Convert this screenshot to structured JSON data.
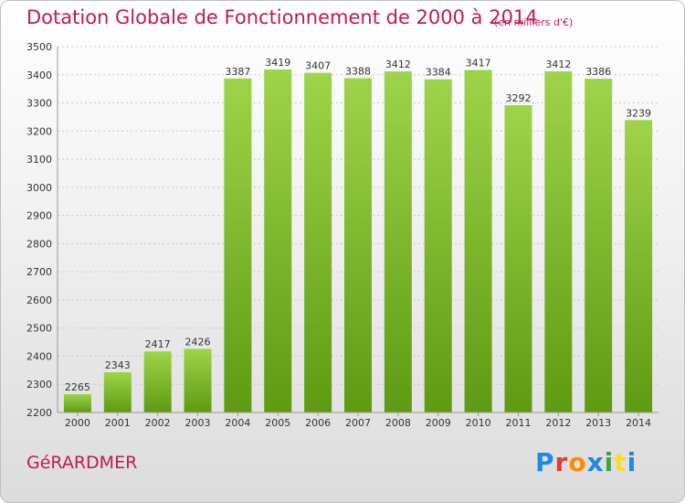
{
  "header": {
    "title": "Dotation Globale de Fonctionnement de 2000 à 2014",
    "subtitle": "(en milliers d'€)"
  },
  "footer": {
    "commune": "GéRARDMER",
    "logo_text": "Proxiti",
    "logo_colors": [
      "#1e88e5",
      "#e53935",
      "#fb8c00",
      "#1e88e5",
      "#43a047",
      "#fdd835",
      "#1e88e5"
    ]
  },
  "colors": {
    "bar_top": "#9ed44a",
    "bar_bottom": "#5e9a12",
    "grid": "#c8c8c8",
    "text": "#333333"
  },
  "chart_data": {
    "type": "bar",
    "title": "Dotation Globale de Fonctionnement de 2000 à 2014",
    "subtitle": "(en milliers d'€)",
    "categories": [
      "2000",
      "2001",
      "2002",
      "2003",
      "2004",
      "2005",
      "2006",
      "2007",
      "2008",
      "2009",
      "2010",
      "2011",
      "2012",
      "2013",
      "2014"
    ],
    "values": [
      2265,
      2343,
      2417,
      2426,
      3387,
      3419,
      3407,
      3388,
      3412,
      3384,
      3417,
      3292,
      3412,
      3386,
      3239
    ],
    "yticks": [
      2200,
      2300,
      2400,
      2500,
      2600,
      2700,
      2800,
      2900,
      3000,
      3100,
      3200,
      3300,
      3400,
      3500
    ],
    "ylim": [
      2200,
      3500
    ],
    "grid": true,
    "xlabel": "",
    "ylabel": ""
  }
}
